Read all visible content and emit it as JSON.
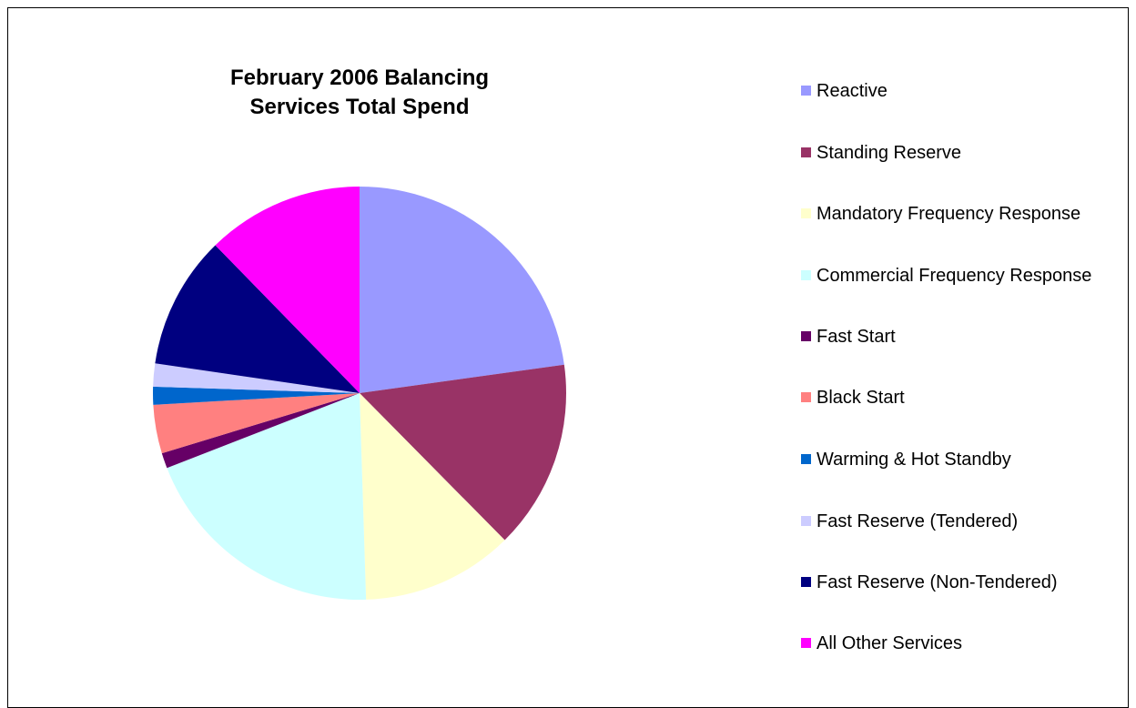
{
  "chart_data": {
    "type": "pie",
    "title": "February 2006 Balancing Services Total Spend",
    "legend_placement": "right",
    "categories": [
      "Reactive",
      "Standing Reserve",
      "Mandatory Frequency Response",
      "Commercial Frequency Response",
      "Fast Start",
      "Black Start",
      "Warming & Hot Standby",
      "Fast Reserve (Tendered)",
      "Fast Reserve (Non-Tendered)",
      "All Other Services"
    ],
    "values": [
      22.8,
      14.8,
      11.9,
      19.6,
      1.2,
      3.8,
      1.4,
      1.8,
      10.4,
      12.3
    ],
    "colors": [
      "#9999FF",
      "#993366",
      "#FFFFCC",
      "#CCFFFF",
      "#660066",
      "#FF8080",
      "#0066CC",
      "#CCCCFF",
      "#000080",
      "#FF00FF"
    ]
  }
}
